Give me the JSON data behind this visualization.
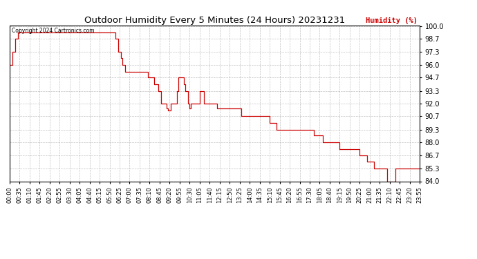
{
  "title": "Outdoor Humidity Every 5 Minutes (24 Hours) 20231231",
  "copyright": "Copyright 2024 Cartronics.com",
  "ylabel": "Humidity (%)",
  "ylabel_color": "#cc0000",
  "title_color": "#000000",
  "line_color": "#cc0000",
  "background_color": "#ffffff",
  "grid_color": "#999999",
  "ylim": [
    84.0,
    100.0
  ],
  "yticks": [
    84.0,
    85.3,
    86.7,
    88.0,
    89.3,
    90.7,
    92.0,
    93.3,
    94.7,
    96.0,
    97.3,
    98.7,
    100.0
  ],
  "humidity_values": [
    96.0,
    96.0,
    97.3,
    97.3,
    98.7,
    98.7,
    99.3,
    99.3,
    99.3,
    99.3,
    99.3,
    99.3,
    99.3,
    99.3,
    99.3,
    99.3,
    99.3,
    99.3,
    99.3,
    99.3,
    99.3,
    99.3,
    99.3,
    99.3,
    99.3,
    99.3,
    99.3,
    99.3,
    99.3,
    99.3,
    99.3,
    99.3,
    99.3,
    99.3,
    99.3,
    99.3,
    99.3,
    99.3,
    99.3,
    99.3,
    99.3,
    99.3,
    99.3,
    99.3,
    99.3,
    99.3,
    99.3,
    99.3,
    99.3,
    99.3,
    99.3,
    99.3,
    99.3,
    99.3,
    99.3,
    99.3,
    99.3,
    99.3,
    99.3,
    99.3,
    99.3,
    99.3,
    99.3,
    99.3,
    99.3,
    99.3,
    99.3,
    99.3,
    99.3,
    99.3,
    99.3,
    99.3,
    99.3,
    99.3,
    98.7,
    98.7,
    97.3,
    97.3,
    96.7,
    96.0,
    96.0,
    95.3,
    95.3,
    95.3,
    95.3,
    95.3,
    95.3,
    95.3,
    95.3,
    95.3,
    95.3,
    95.3,
    95.3,
    95.3,
    95.3,
    95.3,
    95.3,
    94.7,
    94.7,
    94.7,
    94.7,
    94.0,
    94.0,
    94.0,
    93.3,
    93.3,
    92.0,
    92.0,
    92.0,
    92.0,
    91.5,
    91.3,
    91.3,
    92.0,
    92.0,
    92.0,
    92.0,
    93.3,
    94.7,
    94.7,
    94.7,
    94.7,
    94.0,
    93.3,
    93.3,
    92.0,
    91.5,
    92.0,
    92.0,
    92.0,
    92.0,
    92.0,
    92.0,
    93.3,
    93.3,
    93.3,
    92.0,
    92.0,
    92.0,
    92.0,
    92.0,
    92.0,
    92.0,
    92.0,
    92.0,
    91.5,
    91.5,
    91.5,
    91.5,
    91.5,
    91.5,
    91.5,
    91.5,
    91.5,
    91.5,
    91.5,
    91.5,
    91.5,
    91.5,
    91.5,
    91.5,
    91.5,
    90.7,
    90.7,
    90.7,
    90.7,
    90.7,
    90.7,
    90.7,
    90.7,
    90.7,
    90.7,
    90.7,
    90.7,
    90.7,
    90.7,
    90.7,
    90.7,
    90.7,
    90.7,
    90.7,
    90.7,
    90.0,
    90.0,
    90.0,
    90.0,
    90.0,
    89.3,
    89.3,
    89.3,
    89.3,
    89.3,
    89.3,
    89.3,
    89.3,
    89.3,
    89.3,
    89.3,
    89.3,
    89.3,
    89.3,
    89.3,
    89.3,
    89.3,
    89.3,
    89.3,
    89.3,
    89.3,
    89.3,
    89.3,
    89.3,
    89.3,
    89.3,
    88.7,
    88.7,
    88.7,
    88.7,
    88.7,
    88.7,
    88.0,
    88.0,
    88.0,
    88.0,
    88.0,
    88.0,
    88.0,
    88.0,
    88.0,
    88.0,
    88.0,
    88.0,
    87.3,
    87.3,
    87.3,
    87.3,
    87.3,
    87.3,
    87.3,
    87.3,
    87.3,
    87.3,
    87.3,
    87.3,
    87.3,
    87.3,
    86.7,
    86.7,
    86.7,
    86.7,
    86.7,
    86.0,
    86.0,
    86.0,
    86.0,
    86.0,
    85.3,
    85.3,
    85.3,
    85.3,
    85.3,
    85.3,
    85.3,
    85.3,
    85.3,
    84.0,
    84.0,
    84.0,
    84.0,
    84.0,
    84.0,
    85.3,
    85.3,
    85.3,
    85.3,
    85.3,
    85.3,
    85.3,
    85.3,
    85.3,
    85.3,
    85.3,
    85.3,
    85.3,
    85.3,
    85.3,
    85.3,
    85.3,
    85.3
  ]
}
